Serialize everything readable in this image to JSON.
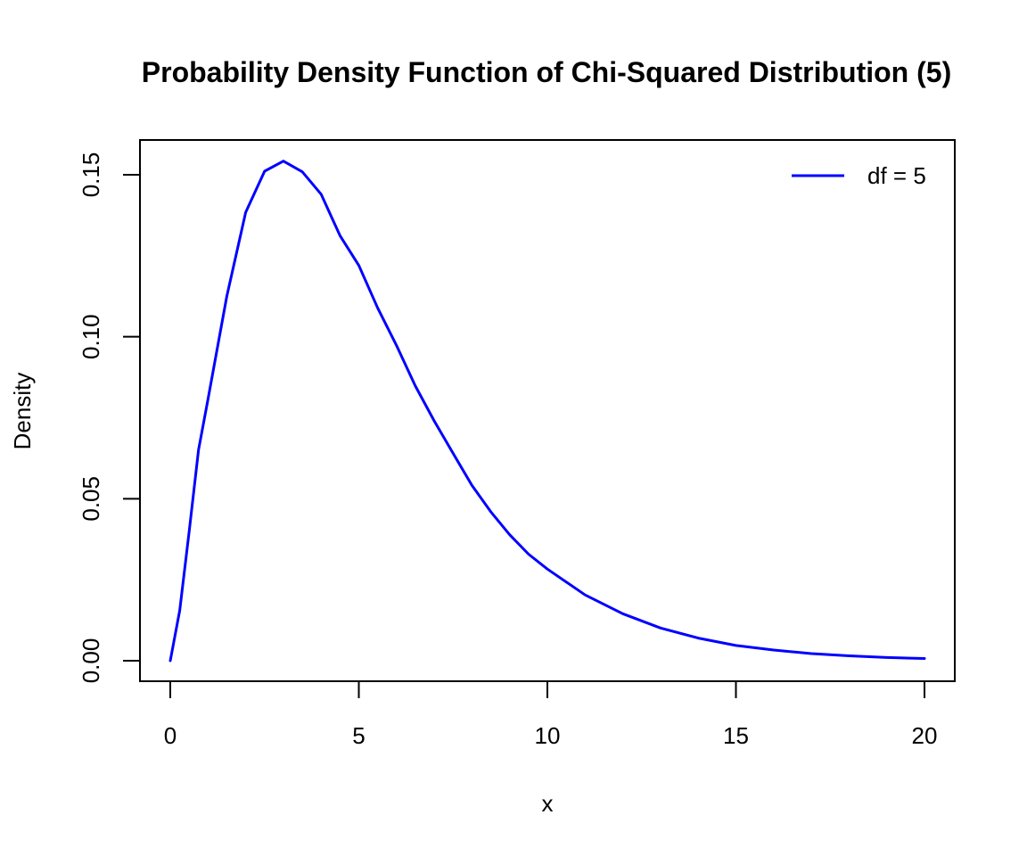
{
  "chart_data": {
    "type": "line",
    "title": "Probability Density Function of Chi-Squared Distribution (5)",
    "xlabel": "x",
    "ylabel": "Density",
    "xlim": [
      0,
      20
    ],
    "ylim": [
      0,
      0.155
    ],
    "x_ticks": [
      "0",
      "5",
      "10",
      "15",
      "20"
    ],
    "y_ticks": [
      "0.00",
      "0.05",
      "0.10",
      "0.15"
    ],
    "grid": false,
    "legend_position": "top-right",
    "series": [
      {
        "name": "df = 5",
        "color": "#0000ff",
        "x": [
          0,
          0.25,
          0.5,
          0.75,
          1,
          1.5,
          2,
          2.5,
          3,
          3.5,
          4,
          4.5,
          5,
          5.5,
          6,
          6.5,
          7,
          7.5,
          8,
          8.5,
          9,
          9.5,
          10,
          11,
          12,
          13,
          14,
          15,
          16,
          17,
          18,
          19,
          20
        ],
        "values": [
          0,
          0.0155,
          0.0399,
          0.0651,
          0.0807,
          0.1125,
          0.1384,
          0.1511,
          0.1542,
          0.1509,
          0.144,
          0.1312,
          0.122,
          0.1089,
          0.0973,
          0.0848,
          0.074,
          0.064,
          0.0541,
          0.046,
          0.0389,
          0.0329,
          0.0283,
          0.0203,
          0.0145,
          0.0101,
          0.007,
          0.0047,
          0.0033,
          0.0022,
          0.0015,
          0.001,
          0.0007
        ]
      }
    ]
  }
}
